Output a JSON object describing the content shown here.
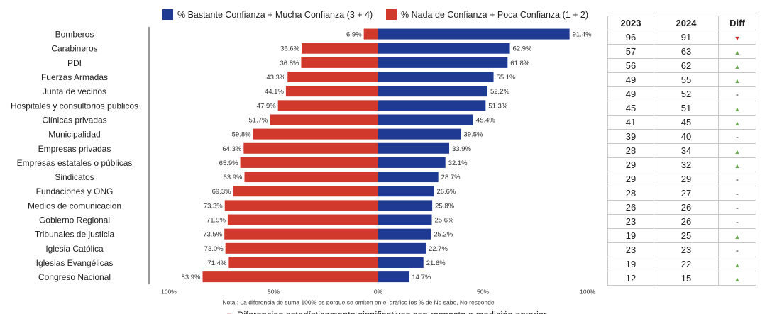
{
  "chart_data": {
    "type": "bar",
    "orientation": "horizontal-diverging",
    "legend": [
      {
        "label": "% Bastante Confianza + Mucha Confianza (3 + 4)",
        "color": "#1f3a93"
      },
      {
        "label": "% Nada de Confianza + Poca Confianza (1 + 2)",
        "color": "#d0392b"
      }
    ],
    "categories": [
      "Bomberos",
      "Carabineros",
      "PDI",
      "Fuerzas Armadas",
      "Junta de vecinos",
      "Hospitales y consultorios públicos",
      "Clínicas privadas",
      "Municipalidad",
      "Empresas privadas",
      "Empresas estatales o públicas",
      "Sindicatos",
      "Fundaciones y ONG",
      "Medios de comunicación",
      "Gobierno Regional",
      "Tribunales de justicia",
      "Iglesia Católica",
      "Iglesias Evangélicas",
      "Congreso Nacional"
    ],
    "series": [
      {
        "name": "% Bastante Confianza + Mucha Confianza (3 + 4)",
        "values": [
          91.4,
          62.9,
          61.8,
          55.1,
          52.2,
          51.3,
          45.4,
          39.5,
          33.9,
          32.1,
          28.7,
          26.6,
          25.8,
          25.6,
          25.2,
          22.7,
          21.6,
          14.7
        ],
        "labels": [
          "91.4%",
          "62.9%",
          "61.8%",
          "55.1%",
          "52.2%",
          "51.3%",
          "45.4%",
          "39.5%",
          "33.9%",
          "32.1%",
          "28.7%",
          "26.6%",
          "25.8%",
          "25.6%",
          "25.2%",
          "22.7%",
          "21.6%",
          "14.7%"
        ]
      },
      {
        "name": "% Nada de Confianza + Poca Confianza (1 + 2)",
        "values": [
          6.9,
          36.6,
          36.8,
          43.3,
          44.1,
          47.9,
          51.7,
          59.8,
          64.3,
          65.9,
          63.9,
          69.3,
          73.3,
          71.9,
          73.5,
          73.0,
          71.4,
          83.9
        ],
        "labels": [
          "6.9%",
          "36.6%",
          "36.8%",
          "43.3%",
          "44.1%",
          "47.9%",
          "51.7%",
          "59.8%",
          "64.3%",
          "65.9%",
          "63.9%",
          "69.3%",
          "73.3%",
          "71.9%",
          "73.5%",
          "73.0%",
          "71.4%",
          "83.9%"
        ]
      }
    ],
    "xlim": [
      -100,
      100
    ],
    "x_ticks": [
      "100%",
      "50%",
      "0%",
      "50%",
      "100%"
    ],
    "note": "Nota : La diferencia de suma 100% es porque se omiten en el gráfico los % de No sabe, No responde",
    "footnote": "Diferencias estadísticamente significativas con respecto a medición anterior"
  },
  "table": {
    "headers": [
      "2023",
      "2024",
      "Diff"
    ],
    "rows": [
      [
        "96",
        "91",
        "down"
      ],
      [
        "57",
        "63",
        "up"
      ],
      [
        "56",
        "62",
        "up"
      ],
      [
        "49",
        "55",
        "up"
      ],
      [
        "49",
        "52",
        "-"
      ],
      [
        "45",
        "51",
        "up"
      ],
      [
        "41",
        "45",
        "up"
      ],
      [
        "39",
        "40",
        "-"
      ],
      [
        "28",
        "34",
        "up"
      ],
      [
        "29",
        "32",
        "up"
      ],
      [
        "29",
        "29",
        "-"
      ],
      [
        "28",
        "27",
        "-"
      ],
      [
        "26",
        "26",
        "-"
      ],
      [
        "23",
        "26",
        "-"
      ],
      [
        "19",
        "25",
        "up"
      ],
      [
        "23",
        "23",
        "-"
      ],
      [
        "19",
        "22",
        "up"
      ],
      [
        "12",
        "15",
        "up"
      ]
    ]
  },
  "colors": {
    "positive": "#1f3a93",
    "negative": "#d0392b",
    "up": "#6aa84f",
    "down": "#cc2222"
  }
}
